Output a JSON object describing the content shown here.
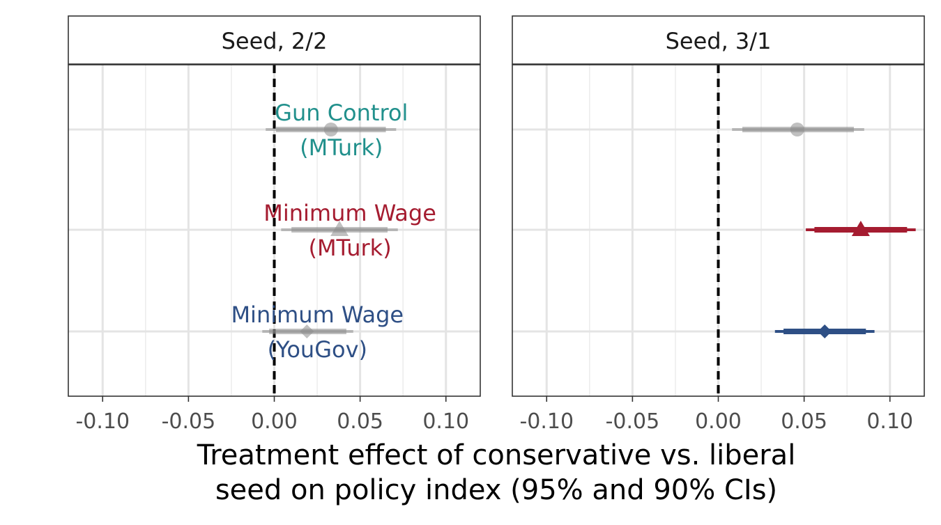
{
  "chart_data": {
    "type": "scatter",
    "subtype": "forest-plot with 95% and 90% confidence intervals, two facets",
    "x_axis": {
      "title_lines": [
        "Treatment effect of conservative vs. liberal",
        "seed on policy index (95% and 90% CIs)"
      ],
      "range": [
        -0.12,
        0.12
      ],
      "ticks": [
        -0.1,
        -0.05,
        0.0,
        0.05,
        0.1
      ],
      "tick_labels": [
        "-0.10",
        "-0.05",
        "0.00",
        "0.05",
        "0.10"
      ],
      "minor_gridlines": [
        -0.075,
        -0.025,
        0.025,
        0.075
      ],
      "reference_line": 0.0
    },
    "grid": true,
    "series_styles": {
      "Gun Control (MTurk)": {
        "color": "#21908c",
        "shape": "circle"
      },
      "Minimum Wage (MTurk)": {
        "color": "#a51c30",
        "shape": "triangle"
      },
      "Minimum Wage (YouGov)": {
        "color": "#2e4f85",
        "shape": "diamond"
      },
      "muted": {
        "color": "#8c8c8c"
      }
    },
    "facets": [
      {
        "strip": "Seed, 2/2",
        "muted": true,
        "points": [
          {
            "series": "Gun Control (MTurk)",
            "label_lines": [
              "Gun Control",
              "(MTurk)"
            ],
            "estimate": 0.033,
            "ci95": [
              -0.005,
              0.071
            ],
            "ci90": [
              0.001,
              0.065
            ]
          },
          {
            "series": "Minimum Wage (MTurk)",
            "label_lines": [
              "Minimum Wage",
              "(MTurk)"
            ],
            "estimate": 0.038,
            "ci95": [
              0.004,
              0.072
            ],
            "ci90": [
              0.01,
              0.066
            ]
          },
          {
            "series": "Minimum Wage (YouGov)",
            "label_lines": [
              "Minimum Wage",
              "(YouGov)"
            ],
            "estimate": 0.019,
            "ci95": [
              -0.007,
              0.046
            ],
            "ci90": [
              -0.003,
              0.042
            ]
          }
        ]
      },
      {
        "strip": "Seed, 3/1",
        "muted": false,
        "points": [
          {
            "series": "Gun Control (MTurk)",
            "estimate": 0.046,
            "ci95": [
              0.008,
              0.085
            ],
            "ci90": [
              0.014,
              0.079
            ],
            "muted": true
          },
          {
            "series": "Minimum Wage (MTurk)",
            "estimate": 0.083,
            "ci95": [
              0.051,
              0.115
            ],
            "ci90": [
              0.056,
              0.11
            ]
          },
          {
            "series": "Minimum Wage (YouGov)",
            "estimate": 0.062,
            "ci95": [
              0.033,
              0.091
            ],
            "ci90": [
              0.038,
              0.086
            ]
          }
        ]
      }
    ]
  }
}
